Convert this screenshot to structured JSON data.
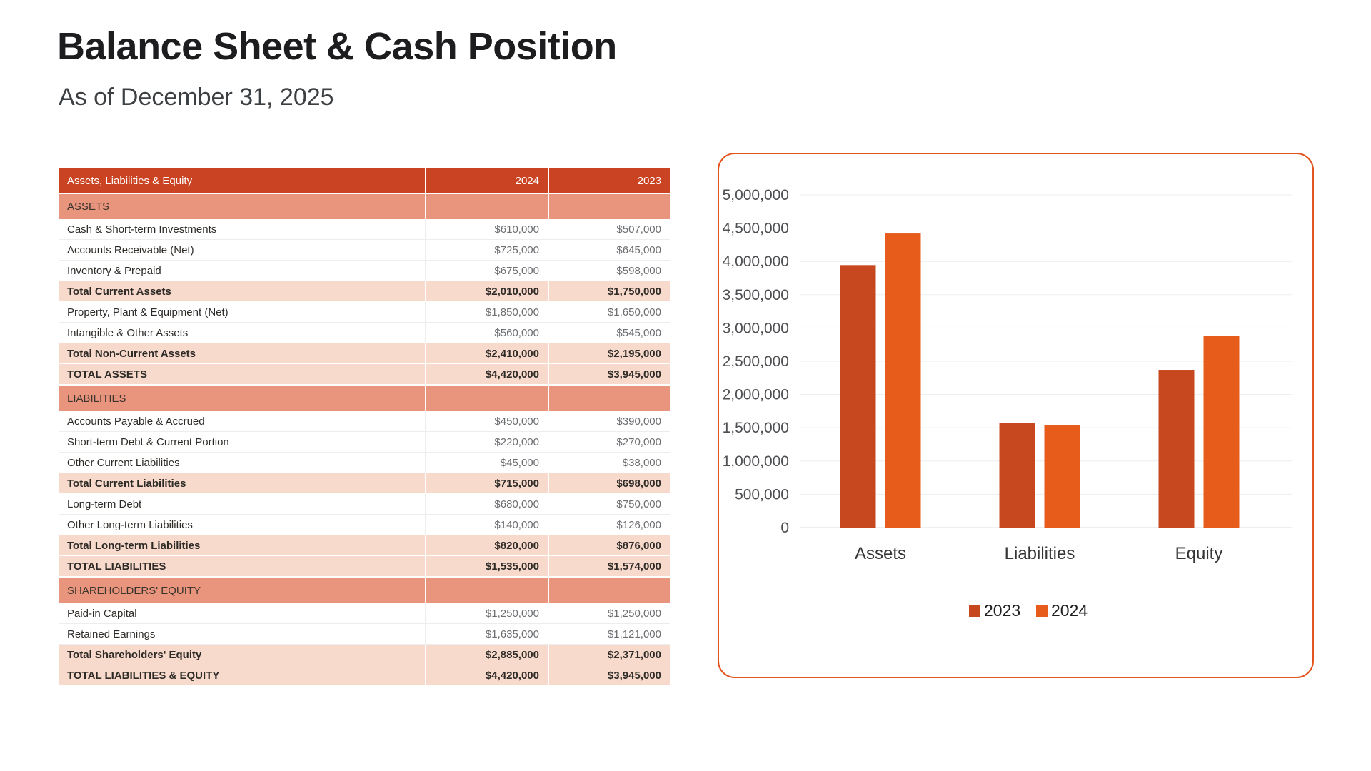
{
  "page": {
    "title": "Balance Sheet & Cash Position",
    "subtitle": "As of December 31, 2025"
  },
  "table": {
    "columns": [
      "Assets, Liabilities & Equity",
      "2024",
      "2023"
    ],
    "rows": [
      {
        "type": "section",
        "label": "ASSETS",
        "v2024": "",
        "v2023": ""
      },
      {
        "type": "data",
        "label": "Cash & Short-term Investments",
        "v2024": "$610,000",
        "v2023": "$507,000"
      },
      {
        "type": "data",
        "label": "Accounts Receivable (Net)",
        "v2024": "$725,000",
        "v2023": "$645,000"
      },
      {
        "type": "data",
        "label": "Inventory & Prepaid",
        "v2024": "$675,000",
        "v2023": "$598,000"
      },
      {
        "type": "total",
        "label": "Total Current Assets",
        "v2024": "$2,010,000",
        "v2023": "$1,750,000"
      },
      {
        "type": "data",
        "label": "Property, Plant & Equipment (Net)",
        "v2024": "$1,850,000",
        "v2023": "$1,650,000"
      },
      {
        "type": "data",
        "label": "Intangible & Other Assets",
        "v2024": "$560,000",
        "v2023": "$545,000"
      },
      {
        "type": "total",
        "label": "Total Non-Current Assets",
        "v2024": "$2,410,000",
        "v2023": "$2,195,000"
      },
      {
        "type": "total",
        "label": "TOTAL ASSETS",
        "v2024": "$4,420,000",
        "v2023": "$3,945,000"
      },
      {
        "type": "section",
        "label": "LIABILITIES",
        "v2024": "",
        "v2023": ""
      },
      {
        "type": "data",
        "label": "Accounts Payable & Accrued",
        "v2024": "$450,000",
        "v2023": "$390,000"
      },
      {
        "type": "data",
        "label": "Short-term Debt & Current Portion",
        "v2024": "$220,000",
        "v2023": "$270,000"
      },
      {
        "type": "data",
        "label": "Other Current Liabilities",
        "v2024": "$45,000",
        "v2023": "$38,000"
      },
      {
        "type": "total",
        "label": "Total Current Liabilities",
        "v2024": "$715,000",
        "v2023": "$698,000"
      },
      {
        "type": "data",
        "label": "Long-term Debt",
        "v2024": "$680,000",
        "v2023": "$750,000"
      },
      {
        "type": "data",
        "label": "Other Long-term Liabilities",
        "v2024": "$140,000",
        "v2023": "$126,000"
      },
      {
        "type": "total",
        "label": "Total Long-term Liabilities",
        "v2024": "$820,000",
        "v2023": "$876,000"
      },
      {
        "type": "total",
        "label": "TOTAL LIABILITIES",
        "v2024": "$1,535,000",
        "v2023": "$1,574,000"
      },
      {
        "type": "section",
        "label": "SHAREHOLDERS' EQUITY",
        "v2024": "",
        "v2023": ""
      },
      {
        "type": "data",
        "label": "Paid-in Capital",
        "v2024": "$1,250,000",
        "v2023": "$1,250,000"
      },
      {
        "type": "data",
        "label": "Retained Earnings",
        "v2024": "$1,635,000",
        "v2023": "$1,121,000"
      },
      {
        "type": "total",
        "label": "Total Shareholders' Equity",
        "v2024": "$2,885,000",
        "v2023": "$2,371,000"
      },
      {
        "type": "total",
        "label": "TOTAL LIABILITIES & EQUITY",
        "v2024": "$4,420,000",
        "v2023": "$3,945,000"
      }
    ]
  },
  "chart_data": {
    "type": "bar",
    "title": "",
    "categories": [
      "Assets",
      "Liabilities",
      "Equity"
    ],
    "series": [
      {
        "name": "2023",
        "color": "#c7481f",
        "values": [
          3945000,
          1574000,
          2371000
        ]
      },
      {
        "name": "2024",
        "color": "#e85c1b",
        "values": [
          4420000,
          1535000,
          2885000
        ]
      }
    ],
    "xlabel": "",
    "ylabel": "",
    "ylim": [
      0,
      5000000
    ],
    "ytick_step": 500000,
    "grid": true,
    "legend_position": "bottom"
  },
  "colors": {
    "table_header_bg": "#ca4423",
    "table_section_bg": "#e9947c",
    "table_total_bg": "#f8dacd",
    "chart_border": "#e2531d",
    "gridline": "#ededed",
    "value_text": "#6b6d70",
    "label_text": "#2e2b27"
  }
}
